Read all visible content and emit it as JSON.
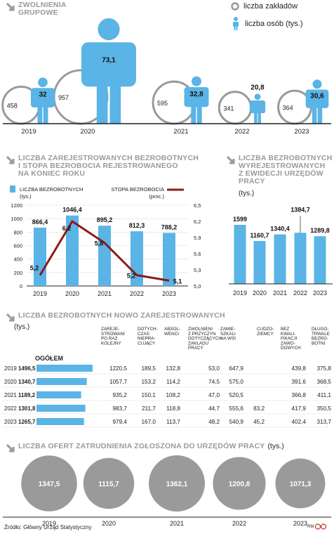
{
  "section1": {
    "title": "ZWOLNIENIA\nGRUPOWE",
    "legend_circle": "liczba zakładów",
    "legend_person": "liczba osób (tys.)",
    "years": [
      "2019",
      "2020",
      "2021",
      "2022",
      "2023"
    ],
    "firms": [
      "458",
      "957",
      "595",
      "341",
      "364"
    ],
    "persons": [
      "32",
      "73,1",
      "32,8",
      "20,8",
      "30,6"
    ]
  },
  "section2": {
    "title": "LICZBA ZAREJESTROWANYCH BEZROBOTNYCH\nI STOPA BEZROBOCIA REJESTROWANEGO\nNA KONIEC ROKU",
    "legend_bars": "LICZBA BEZROBOTNYCH\n(tys.)",
    "legend_line": "STOPA BEZROBOCIA\n(proc.)"
  },
  "section3": {
    "title": "LICZBA BEZROBOTNYCH\nWYREJESTROWANYCH\nZ EWIDECJI URZĘDÓW\nPRACY",
    "unit": "(tys.)"
  },
  "section4": {
    "title": "LICZBA BEZROBOTNYCH NOWO ZAREJESTROWANYCH",
    "unit": "(tys.)",
    "total_label": "OGÓŁEM",
    "columns": [
      "ZAREJE-\nSTROWANI\nPO RAZ\nKOLEJNY",
      "DOTYCH-\nCZAS\nNIEPRA-\nCUJĄCY",
      "ABSOL-\nWENCI",
      "ZWOLNIENI\nZ PRZYCZYN\nDOTYCZĄCYCH\nZAKŁADU\nPRACY",
      "ZAMIE-\nSZKALI\nNA WSI",
      "CUDZO-\nZIEMCY",
      "BEZ\nKWALI-\nFIKACJI\nZAWO-\nDOWYCH",
      "DŁUGO-\nTRWALE\nBEZRO-\nBOTNI"
    ],
    "rows": [
      {
        "year": "2019",
        "total": "1496,5",
        "total_num": 1496.5,
        "cells": [
          "1220,5",
          "189,5",
          "132,8",
          "53,0",
          "647,9",
          "",
          "439,8",
          "375,8"
        ]
      },
      {
        "year": "2020",
        "total": "1340,7",
        "total_num": 1340.7,
        "cells": [
          "1057,7",
          "153,2",
          "114,2",
          "74,5",
          "575,0",
          "",
          "391,6",
          "368,5"
        ]
      },
      {
        "year": "2021",
        "total": "1189,2",
        "total_num": 1189.2,
        "cells": [
          "935,2",
          "150,1",
          "108,2",
          "47,0",
          "520,5",
          "",
          "366,8",
          "411,1"
        ]
      },
      {
        "year": "2022",
        "total": "1301,8",
        "total_num": 1301.8,
        "cells": [
          "983,7",
          "211,7",
          "118,8",
          "44,7",
          "555,6",
          "83,2",
          "417,9",
          "350,5"
        ]
      },
      {
        "year": "2023",
        "total": "1265,7",
        "total_num": 1265.7,
        "cells": [
          "979,4",
          "167,0",
          "113,7",
          "48,2",
          "540,9",
          "45,2",
          "402,4",
          "313,7"
        ]
      }
    ]
  },
  "section5": {
    "title": "LICZBA OFERT ZATRUDNIENIA ZGŁOSZONA DO URZĘDÓW PRACY",
    "unit": "(tys.)",
    "years": [
      "2019",
      "2020",
      "2021",
      "2022",
      "2023"
    ],
    "values": [
      "1347,5",
      "1115,7",
      "1362,1",
      "1200,8",
      "1071,3"
    ],
    "values_num": [
      1347.5,
      1115.7,
      1362.1,
      1200.8,
      1071.3
    ]
  },
  "source": "Źródło: Główny Urząd Statystyczny",
  "credit": "RM",
  "colors": {
    "blue": "#5ab4e6",
    "grey_circle": "#9a9a9a",
    "line": "#8c1b1b",
    "header": "#9a9a9a"
  },
  "chart_data": [
    {
      "type": "bar",
      "categories": [
        "2019",
        "2020",
        "2021",
        "2022",
        "2023"
      ],
      "series": [
        {
          "name": "liczba zakładów",
          "values": [
            458,
            957,
            595,
            341,
            364
          ]
        },
        {
          "name": "liczba osób (tys.)",
          "values": [
            32,
            73.1,
            32.8,
            20.8,
            30.6
          ]
        }
      ],
      "title": "ZWOLNIENIA GRUPOWE"
    },
    {
      "type": "bar",
      "categories": [
        "2019",
        "2020",
        "2021",
        "2022",
        "2023"
      ],
      "series": [
        {
          "name": "LICZBA BEZROBOTNYCH (tys.)",
          "values": [
            866.4,
            1046.4,
            895.2,
            812.3,
            788.2
          ],
          "labels": [
            "866,4",
            "1046,4",
            "895,2",
            "812,3",
            "788,2"
          ]
        },
        {
          "name": "STOPA BEZROBOCIA (proc.)",
          "type": "line",
          "values": [
            5.2,
            6.2,
            5.8,
            5.2,
            5.1
          ],
          "labels": [
            "5,2",
            "6,2",
            "5,8",
            "5,2",
            "5,1"
          ]
        }
      ],
      "title": "LICZBA ZAREJESTROWANYCH BEZROBOTNYCH I STOPA BEZROBOCIA REJESTROWANEGO NA KONIEC ROKU",
      "ylim": [
        0,
        1200
      ],
      "yticks": [
        "0",
        "200",
        "400",
        "600",
        "800",
        "1000",
        "1200"
      ],
      "y2lim": [
        5.0,
        6.5
      ],
      "y2ticks": [
        "5,0",
        "5,3",
        "5,6",
        "5,9",
        "6,2",
        "6,5"
      ]
    },
    {
      "type": "bar",
      "categories": [
        "2019",
        "2020",
        "2021",
        "2022",
        "2023"
      ],
      "values": [
        1599,
        1160.7,
        1340.4,
        1384.7,
        1289.8
      ],
      "labels": [
        "1599",
        "1160,7",
        "1340,4",
        "1384,7",
        "1289,8"
      ],
      "title": "LICZBA BEZROBOTNYCH WYREJESTROWANYCH Z EWIDECJI URZĘDÓW PRACY",
      "ylabel": "(tys.)"
    },
    {
      "type": "bar",
      "categories": [
        "2019",
        "2020",
        "2021",
        "2022",
        "2023"
      ],
      "values": [
        1347.5,
        1115.7,
        1362.1,
        1200.8,
        1071.3
      ],
      "title": "LICZBA OFERT ZATRUDNIENIA ZGŁOSZONA DO URZĘDÓW PRACY"
    }
  ]
}
